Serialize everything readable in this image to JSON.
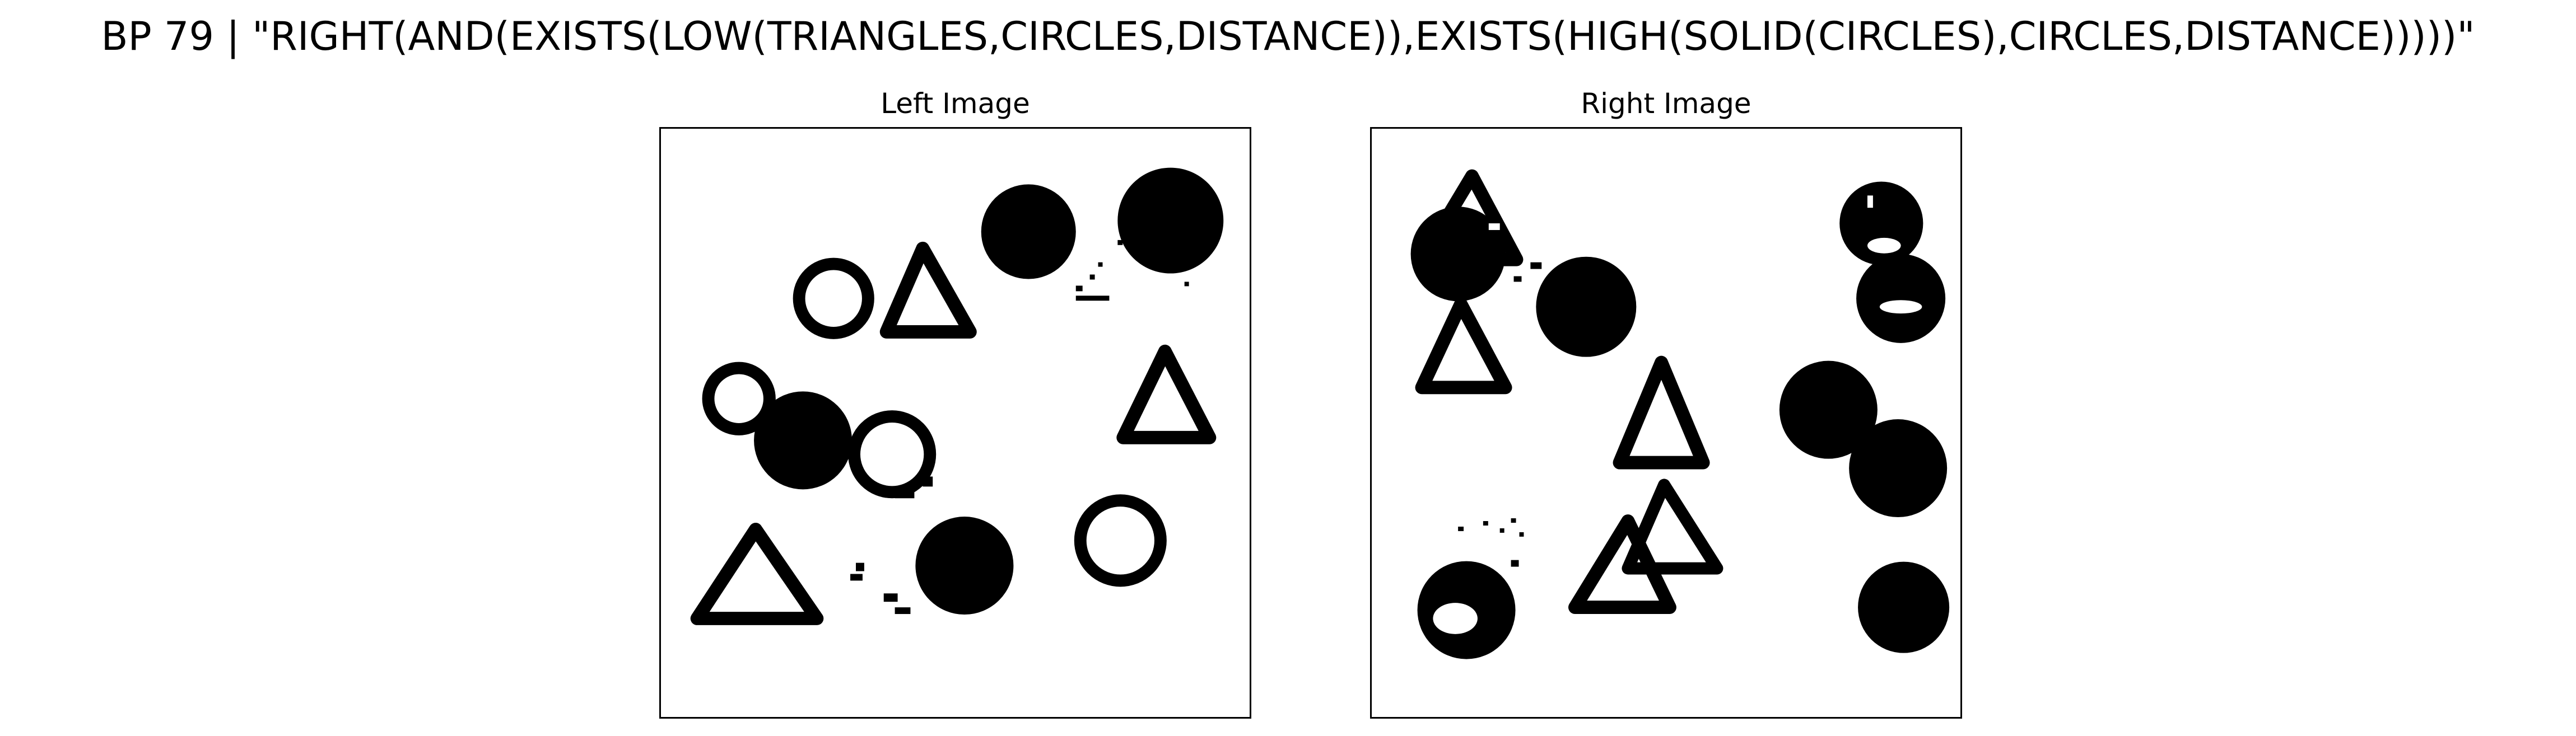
{
  "header": {
    "title": "BP 79 | \"RIGHT(AND(EXISTS(LOW(TRIANGLES,CIRCLES,DISTANCE)),EXISTS(HIGH(SOLID(CIRCLES),CIRCLES,DISTANCE)))))\""
  },
  "panels": {
    "left": {
      "title": "Left Image"
    },
    "right": {
      "title": "Right Image"
    }
  },
  "colors": {
    "ink": "#000000",
    "background": "#ffffff"
  }
}
